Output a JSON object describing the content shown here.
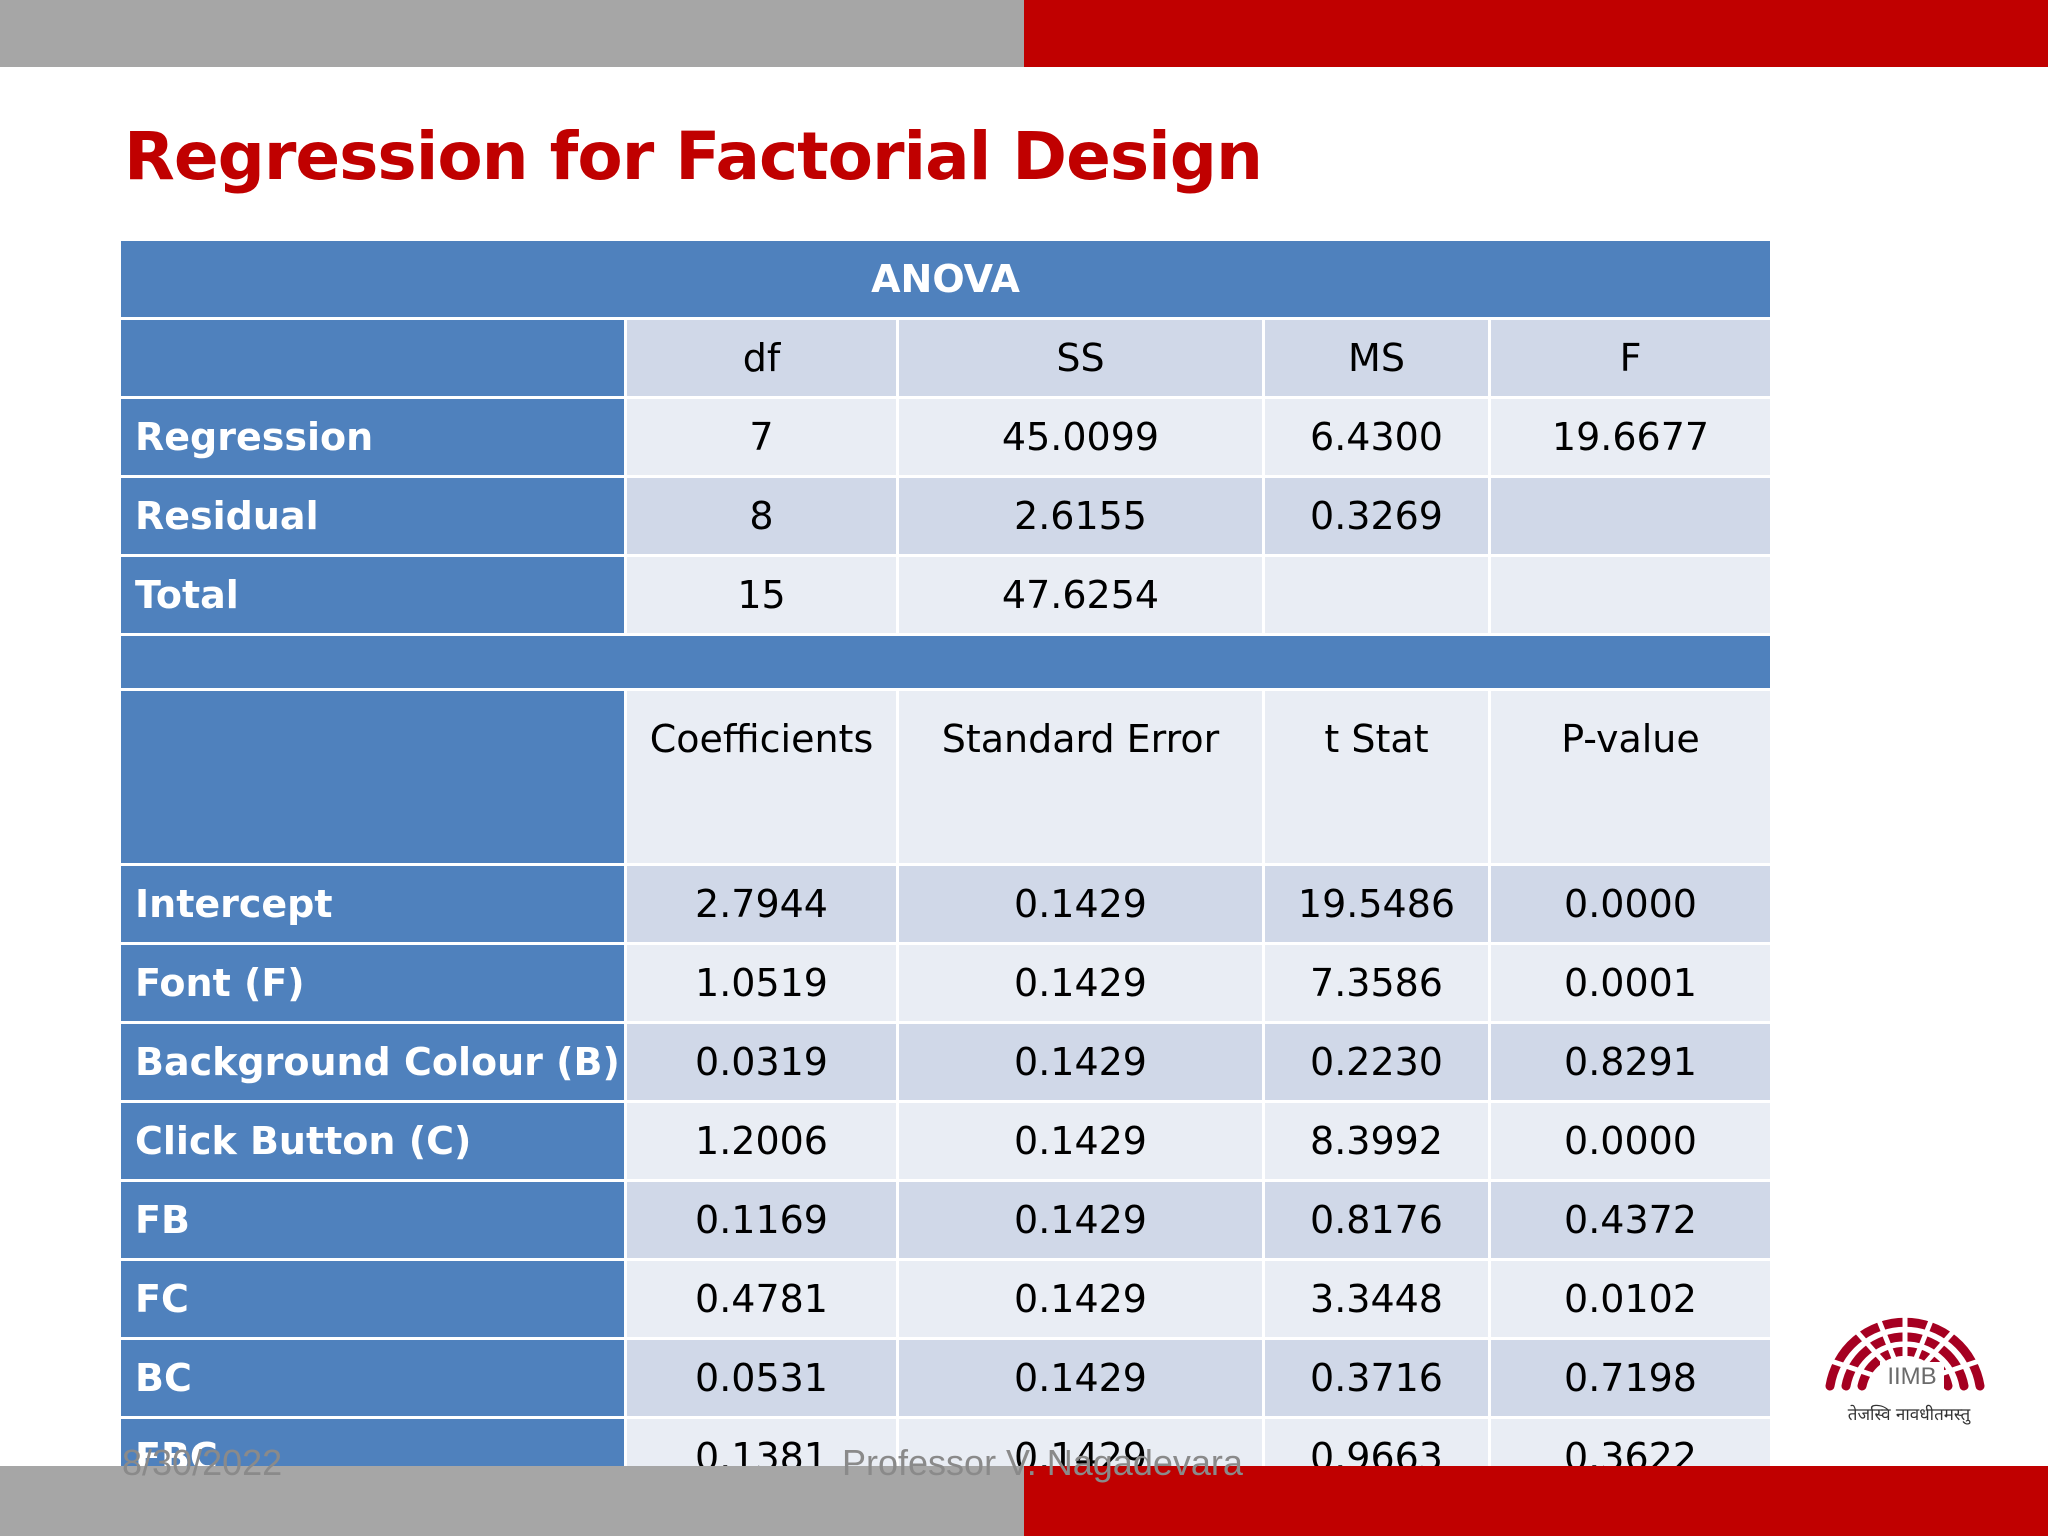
{
  "slide": {
    "title": "Regression for Factorial Design",
    "date": "8/30/2022",
    "author": "Professor V. Nagadevara"
  },
  "logo": {
    "text": "IIMB",
    "motto": "तेजस्वि नावधीतमस्तु",
    "color": "#a50021"
  },
  "anova": {
    "title": "ANOVA",
    "headers": [
      "df",
      "SS",
      "MS",
      "F"
    ],
    "rows": [
      {
        "label": "Regression",
        "df": "7",
        "ss": "45.0099",
        "ms": "6.4300",
        "f": "19.6677"
      },
      {
        "label": "Residual",
        "df": "8",
        "ss": "2.6155",
        "ms": "0.3269",
        "f": ""
      },
      {
        "label": "Total",
        "df": "15",
        "ss": "47.6254",
        "ms": "",
        "f": ""
      }
    ]
  },
  "coefficients": {
    "headers": [
      "Coefficients",
      "Standard Error",
      "t Stat",
      "P-value"
    ],
    "rows": [
      {
        "label": "Intercept",
        "coef": "2.7944",
        "se": "0.1429",
        "t": "19.5486",
        "p": "0.0000"
      },
      {
        "label": "Font (F)",
        "coef": "1.0519",
        "se": "0.1429",
        "t": "7.3586",
        "p": "0.0001"
      },
      {
        "label": "Background Colour (B)",
        "coef": "0.0319",
        "se": "0.1429",
        "t": "0.2230",
        "p": "0.8291"
      },
      {
        "label": "Click Button (C)",
        "coef": "1.2006",
        "se": "0.1429",
        "t": "8.3992",
        "p": "0.0000"
      },
      {
        "label": "FB",
        "coef": "0.1169",
        "se": "0.1429",
        "t": "0.8176",
        "p": "0.4372"
      },
      {
        "label": "FC",
        "coef": "0.4781",
        "se": "0.1429",
        "t": "3.3448",
        "p": "0.0102"
      },
      {
        "label": "BC",
        "coef": "0.0531",
        "se": "0.1429",
        "t": "0.3716",
        "p": "0.7198"
      },
      {
        "label": "FBC",
        "coef": "0.1381",
        "se": "0.1429",
        "t": "0.9663",
        "p": "0.3622"
      }
    ]
  },
  "colors": {
    "accent_red": "#c00000",
    "header_blue": "#4f81bd",
    "band_dark": "#d0d8e8",
    "band_light": "#e9edf4",
    "bar_gray": "#a6a6a6"
  }
}
